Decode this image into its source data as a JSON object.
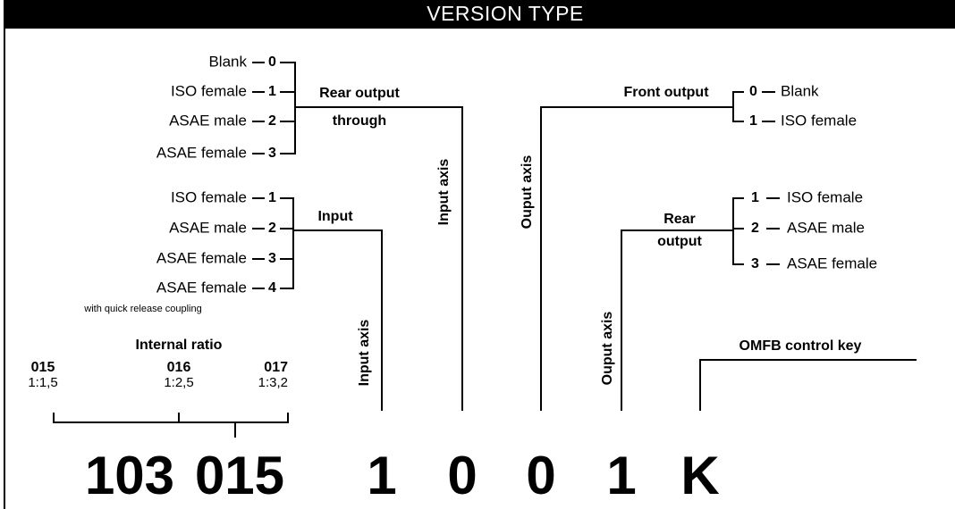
{
  "header": {
    "title": "VERSION TYPE"
  },
  "rear_output_through": {
    "label_lines": [
      "Rear output",
      "through"
    ],
    "axis_label": "Input axis",
    "options": [
      {
        "label": "Blank",
        "code": "0"
      },
      {
        "label": "ISO female",
        "code": "1"
      },
      {
        "label": "ASAE male",
        "code": "2"
      },
      {
        "label": "ASAE female",
        "code": "3"
      }
    ]
  },
  "input": {
    "label": "Input",
    "axis_label": "Input axis",
    "options": [
      {
        "label": "ISO female",
        "code": "1"
      },
      {
        "label": "ASAE male",
        "code": "2"
      },
      {
        "label": "ASAE female",
        "code": "3"
      },
      {
        "label": "ASAE female",
        "code": "4",
        "note": "with quick release coupling"
      }
    ]
  },
  "internal_ratio": {
    "label": "Internal ratio",
    "options": [
      {
        "code": "015",
        "ratio": "1:1,5"
      },
      {
        "code": "016",
        "ratio": "1:2,5"
      },
      {
        "code": "017",
        "ratio": "1:3,2"
      }
    ]
  },
  "front_output": {
    "label": "Front output",
    "axis_label": "Ouput axis",
    "options": [
      {
        "code": "0",
        "label": "Blank"
      },
      {
        "code": "1",
        "label": "ISO female"
      }
    ]
  },
  "rear_output": {
    "label_lines": [
      "Rear",
      "output"
    ],
    "axis_label": "Ouput axis",
    "options": [
      {
        "code": "1",
        "label": "ISO female"
      },
      {
        "code": "2",
        "label": "ASAE male"
      },
      {
        "code": "3",
        "label": "ASAE female"
      }
    ]
  },
  "control_key": {
    "label": "OMFB control key"
  },
  "code": [
    "103",
    "015",
    "1",
    "0",
    "0",
    "1",
    "K"
  ]
}
